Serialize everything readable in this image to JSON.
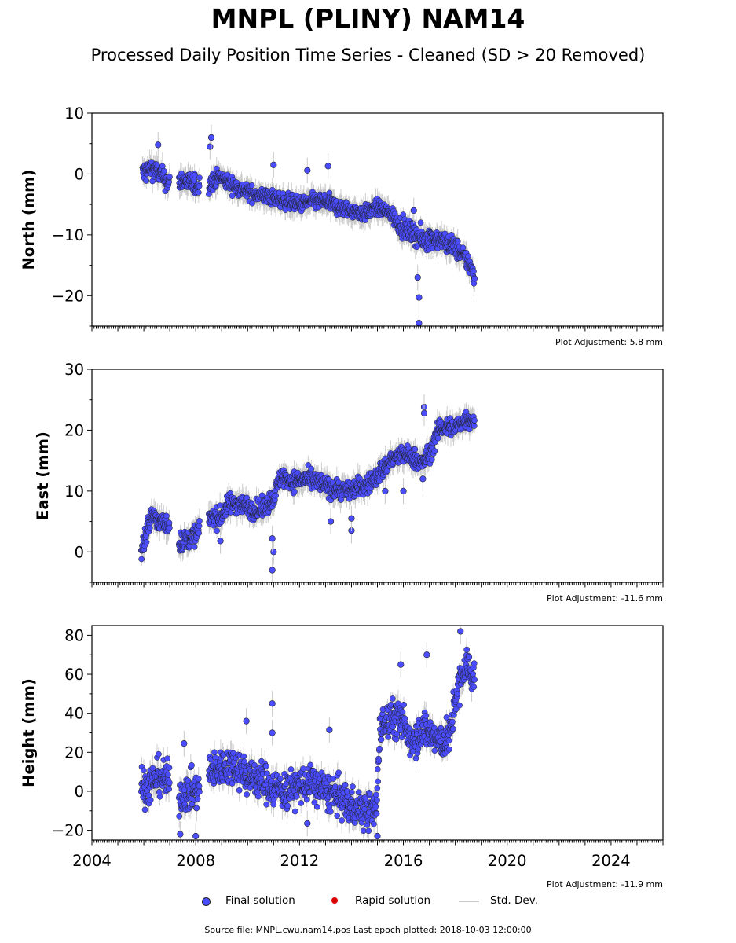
{
  "figure": {
    "title": "MNPL (PLINY) NAM14",
    "subtitle": "Processed Daily Position Time Series - Cleaned (SD > 20 Removed)",
    "footer": "Source file: MNPL.cwu.nam14.pos  Last epoch plotted: 2018-10-03 12:00:00"
  },
  "legend": {
    "final": "Final solution",
    "rapid": "Rapid solution",
    "std": "Std. Dev."
  },
  "colors": {
    "final": "#4a4cff",
    "rapid": "#e00000",
    "std": "#c8c8c8",
    "marker_edge": "#222222"
  },
  "chart_data": [
    {
      "type": "scatter",
      "ylabel": "North (mm)",
      "xlim": [
        2004,
        2026
      ],
      "ylim": [
        -25,
        10
      ],
      "yticks": [
        10,
        0,
        -10,
        -20
      ],
      "adjustment": "Plot Adjustment: 5.8 mm",
      "show_xticklabels": false,
      "series": [
        {
          "name": "Final solution",
          "x": [
            2005.95,
            2006.3,
            2006.6,
            2006.95,
            2007.45,
            2007.8,
            2008.05,
            2008.55,
            2008.9,
            2009.5,
            2010.0,
            2010.5,
            2011.0,
            2011.5,
            2012.0,
            2012.5,
            2013.0,
            2013.5,
            2014.0,
            2014.5,
            2015.0,
            2015.5,
            2016.0,
            2016.5,
            2016.75,
            2017.0,
            2017.5,
            2018.0,
            2018.5,
            2018.75
          ],
          "y": [
            0,
            1,
            0,
            -1.5,
            -1,
            -1.5,
            -2,
            -1.5,
            -0.5,
            -2,
            -3,
            -3.5,
            -4,
            -4.5,
            -5,
            -4.5,
            -4.5,
            -5.5,
            -6,
            -6.5,
            -5.5,
            -6.5,
            -9,
            -10,
            -11,
            -10.5,
            -11,
            -12,
            -14.5,
            -17
          ],
          "spread": [
            2,
            1.5,
            1.5,
            1.5,
            1.5,
            1.5,
            1.5,
            1.5,
            1.2,
            1.2,
            1.2,
            1.2,
            1.2,
            1.2,
            1.2,
            1.2,
            1.2,
            1.2,
            1.2,
            1.2,
            1.2,
            1.2,
            1.5,
            1.5,
            2,
            1.5,
            1.5,
            1.5,
            1.5,
            1.5
          ],
          "outliers": [
            [
              2006.55,
              4.8
            ],
            [
              2008.55,
              4.5
            ],
            [
              2008.6,
              6
            ],
            [
              2011.0,
              1.5
            ],
            [
              2012.3,
              0.6
            ],
            [
              2013.1,
              1.3
            ],
            [
              2016.55,
              -17
            ],
            [
              2016.6,
              -20.3
            ],
            [
              2016.6,
              -24.5
            ],
            [
              2016.4,
              -6
            ]
          ]
        }
      ]
    },
    {
      "type": "scatter",
      "ylabel": "East (mm)",
      "xlim": [
        2004,
        2026
      ],
      "ylim": [
        -5,
        30
      ],
      "yticks": [
        30,
        20,
        10,
        0
      ],
      "adjustment": "Plot Adjustment: -11.6 mm",
      "show_xticklabels": false,
      "series": [
        {
          "name": "Final solution",
          "x": [
            2005.9,
            2006.0,
            2006.3,
            2006.6,
            2006.95,
            2007.4,
            2007.7,
            2008.05,
            2008.6,
            2008.9,
            2009.3,
            2009.7,
            2010.2,
            2010.6,
            2011.0,
            2011.3,
            2011.7,
            2012.2,
            2012.7,
            2013.2,
            2013.7,
            2014.2,
            2014.6,
            2015.0,
            2015.5,
            2016.0,
            2016.4,
            2016.7,
            2017.0,
            2017.4,
            2018.0,
            2018.5,
            2018.75
          ],
          "y": [
            0,
            2,
            6,
            5,
            4.5,
            1.5,
            2,
            3,
            6,
            5.5,
            8,
            8,
            7,
            7,
            9,
            12.5,
            11.5,
            12,
            11.5,
            10.5,
            10,
            10.5,
            11,
            12.5,
            15,
            16,
            15.5,
            14.5,
            16,
            20.5,
            20.5,
            22,
            21.5
          ],
          "spread": [
            2,
            2,
            1.5,
            1.5,
            1.5,
            1.5,
            1.5,
            1.5,
            1.5,
            1.5,
            1.5,
            1.5,
            1.5,
            1.5,
            1.5,
            1.5,
            1.5,
            1.5,
            1.5,
            1.5,
            1.5,
            1.5,
            1.5,
            1.5,
            1.5,
            1.5,
            1.5,
            1.5,
            1.5,
            1.5,
            1.5,
            1.5,
            1.5
          ],
          "outliers": [
            [
              2010.95,
              -3
            ],
            [
              2011.0,
              0
            ],
            [
              2010.95,
              2.2
            ],
            [
              2013.2,
              5
            ],
            [
              2014.0,
              3.5
            ],
            [
              2014.0,
              5.5
            ],
            [
              2015.3,
              10
            ],
            [
              2016.8,
              23.8
            ],
            [
              2016.8,
              22.8
            ],
            [
              2016.75,
              12
            ],
            [
              2016.0,
              10
            ],
            [
              2008.95,
              1.8
            ]
          ]
        }
      ]
    },
    {
      "type": "scatter",
      "ylabel": "Height (mm)",
      "xlim": [
        2004,
        2026
      ],
      "ylim": [
        -25,
        85
      ],
      "yticks": [
        80,
        60,
        40,
        20,
        0,
        -20
      ],
      "xticks": [
        2004,
        2008,
        2012,
        2016,
        2020,
        2024
      ],
      "adjustment": "Plot Adjustment: -11.9 mm",
      "show_xticklabels": true,
      "series": [
        {
          "name": "Final solution",
          "x": [
            2005.9,
            2006.2,
            2006.6,
            2006.95,
            2007.4,
            2007.8,
            2008.05,
            2008.6,
            2009.0,
            2009.5,
            2010.0,
            2010.5,
            2011.0,
            2011.5,
            2012.0,
            2012.5,
            2013.0,
            2013.5,
            2014.0,
            2014.5,
            2014.95,
            2015.1,
            2015.5,
            2016.0,
            2016.3,
            2016.7,
            2017.0,
            2017.4,
            2017.8,
            2018.0,
            2018.4,
            2018.75
          ],
          "y": [
            2,
            3,
            8,
            5,
            -2,
            0,
            0,
            10,
            12,
            14,
            8,
            6,
            2,
            0,
            3,
            4,
            0,
            -3,
            -8,
            -10,
            -10,
            32,
            38,
            35,
            26,
            32,
            30,
            25,
            28,
            48,
            65,
            58
          ],
          "spread": [
            10,
            9,
            9,
            9,
            9,
            9,
            9,
            9,
            9,
            9,
            9,
            9,
            9,
            9,
            9,
            9,
            9,
            9,
            9,
            9,
            9,
            9,
            9,
            9,
            9,
            9,
            9,
            9,
            9,
            9,
            9,
            9
          ],
          "outliers": [
            [
              2007.4,
              -22
            ],
            [
              2007.55,
              24.5
            ],
            [
              2008.0,
              -23
            ],
            [
              2009.95,
              36
            ],
            [
              2010.95,
              45
            ],
            [
              2010.95,
              30
            ],
            [
              2013.15,
              31.5
            ],
            [
              2016.9,
              70
            ],
            [
              2015.9,
              65
            ],
            [
              2018.2,
              82
            ],
            [
              2012.3,
              -16.5
            ],
            [
              2015.0,
              -23
            ]
          ]
        }
      ]
    }
  ]
}
